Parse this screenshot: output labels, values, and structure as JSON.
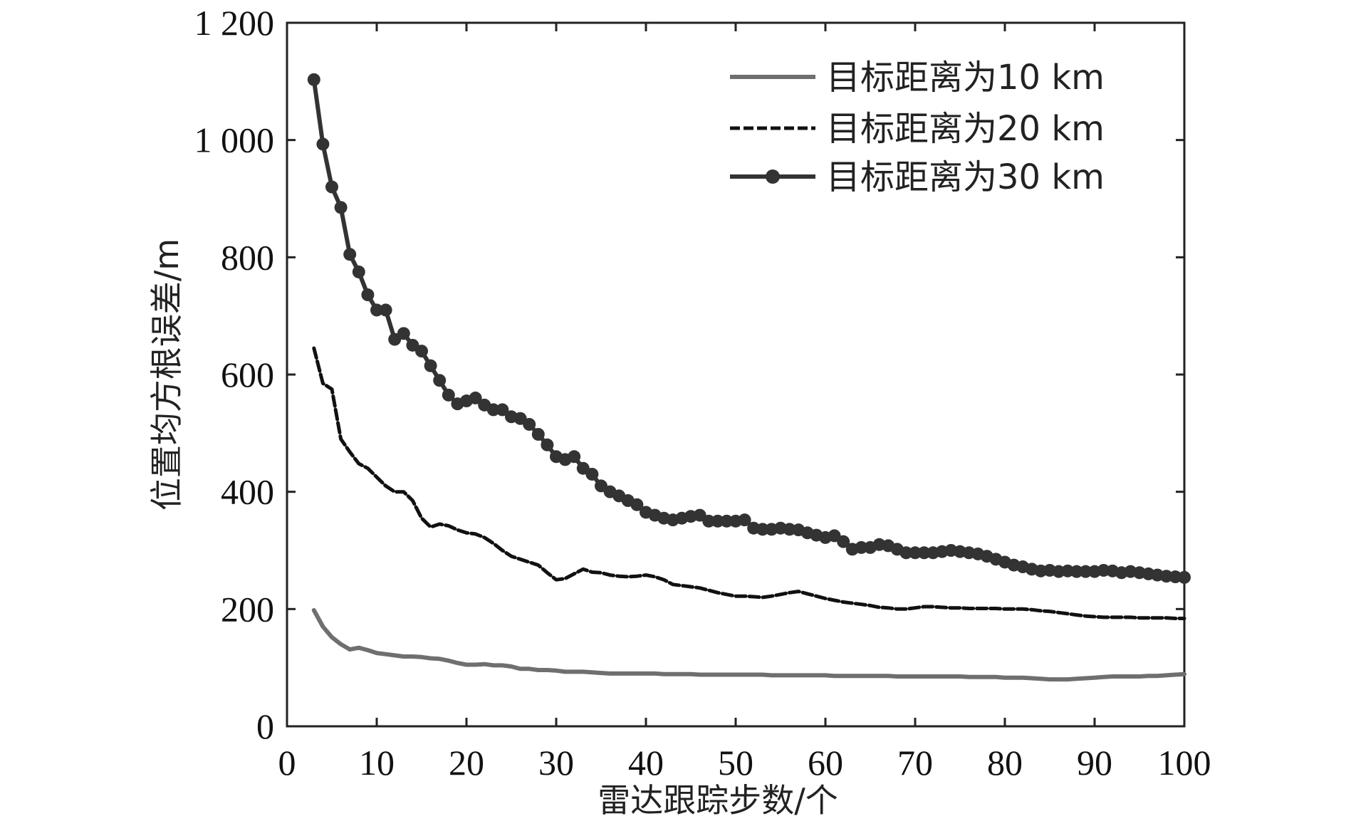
{
  "chart_data": {
    "type": "line",
    "xlabel": "雷达跟踪步数/个",
    "ylabel": "位置均方根误差/m",
    "xlim": [
      0,
      100
    ],
    "ylim": [
      0,
      1200
    ],
    "xticks": [
      0,
      10,
      20,
      30,
      40,
      50,
      60,
      70,
      80,
      90,
      100
    ],
    "yticks": [
      0,
      200,
      400,
      600,
      800,
      1000,
      1200
    ],
    "xtick_labels": [
      "0",
      "10",
      "20",
      "30",
      "40",
      "50",
      "60",
      "70",
      "80",
      "90",
      "100"
    ],
    "ytick_labels": [
      "0",
      "200",
      "400",
      "600",
      "800",
      "1 000",
      "1 200"
    ],
    "grid": false,
    "legend_position": "top-right",
    "x": [
      3,
      4,
      5,
      6,
      7,
      8,
      9,
      10,
      11,
      12,
      13,
      14,
      15,
      16,
      17,
      18,
      19,
      20,
      21,
      22,
      23,
      24,
      25,
      26,
      27,
      28,
      29,
      30,
      31,
      32,
      33,
      34,
      35,
      36,
      37,
      38,
      39,
      40,
      41,
      42,
      43,
      44,
      45,
      46,
      47,
      48,
      49,
      50,
      51,
      52,
      53,
      54,
      55,
      56,
      57,
      58,
      59,
      60,
      61,
      62,
      63,
      64,
      65,
      66,
      67,
      68,
      69,
      70,
      71,
      72,
      73,
      74,
      75,
      76,
      77,
      78,
      79,
      80,
      81,
      82,
      83,
      84,
      85,
      86,
      87,
      88,
      89,
      90,
      91,
      92,
      93,
      94,
      95,
      96,
      97,
      98,
      99,
      100
    ],
    "series": [
      {
        "name": "目标距离为10 km",
        "color": "#6f6f6f",
        "marker": "none",
        "values": [
          198,
          170,
          152,
          140,
          131,
          134,
          130,
          125,
          123,
          121,
          119,
          119,
          118,
          116,
          115,
          112,
          108,
          105,
          105,
          106,
          104,
          104,
          102,
          98,
          98,
          96,
          96,
          95,
          93,
          93,
          93,
          92,
          91,
          90,
          90,
          90,
          90,
          90,
          90,
          89,
          89,
          89,
          89,
          88,
          88,
          88,
          88,
          88,
          88,
          88,
          88,
          87,
          87,
          87,
          87,
          87,
          87,
          87,
          86,
          86,
          86,
          86,
          86,
          86,
          86,
          85,
          85,
          85,
          85,
          85,
          85,
          85,
          85,
          84,
          84,
          84,
          84,
          83,
          83,
          83,
          82,
          81,
          80,
          80,
          80,
          81,
          82,
          83,
          84,
          85,
          85,
          85,
          85,
          86,
          86,
          87,
          88,
          89
        ]
      },
      {
        "name": "目标距离为20 km",
        "color": "#111111",
        "marker": "none",
        "values": [
          645,
          585,
          575,
          490,
          468,
          448,
          440,
          425,
          410,
          400,
          400,
          385,
          355,
          340,
          345,
          342,
          335,
          330,
          328,
          322,
          312,
          300,
          290,
          285,
          280,
          275,
          262,
          250,
          252,
          260,
          268,
          263,
          262,
          258,
          256,
          255,
          256,
          258,
          255,
          250,
          242,
          240,
          238,
          236,
          232,
          228,
          225,
          222,
          222,
          221,
          220,
          222,
          225,
          228,
          230,
          226,
          222,
          218,
          215,
          212,
          210,
          208,
          206,
          203,
          202,
          200,
          200,
          202,
          204,
          204,
          203,
          202,
          202,
          201,
          201,
          201,
          201,
          200,
          200,
          200,
          199,
          197,
          196,
          194,
          192,
          190,
          188,
          187,
          186,
          186,
          186,
          186,
          185,
          185,
          185,
          185,
          184,
          184
        ]
      },
      {
        "name": "目标距离为30 km",
        "color": "#333333",
        "marker": "circle",
        "values": [
          1103,
          993,
          920,
          885,
          805,
          775,
          736,
          710,
          710,
          660,
          670,
          650,
          640,
          615,
          590,
          565,
          550,
          555,
          560,
          548,
          540,
          540,
          528,
          525,
          515,
          498,
          480,
          460,
          455,
          460,
          440,
          430,
          410,
          400,
          393,
          385,
          378,
          365,
          360,
          355,
          352,
          355,
          358,
          360,
          350,
          350,
          350,
          350,
          352,
          338,
          336,
          336,
          338,
          336,
          335,
          330,
          326,
          322,
          325,
          315,
          302,
          305,
          305,
          310,
          308,
          302,
          296,
          296,
          296,
          296,
          298,
          300,
          298,
          296,
          294,
          290,
          285,
          280,
          275,
          272,
          268,
          265,
          266,
          264,
          265,
          264,
          264,
          264,
          266,
          265,
          262,
          264,
          262,
          260,
          258,
          256,
          255,
          254
        ]
      }
    ]
  }
}
